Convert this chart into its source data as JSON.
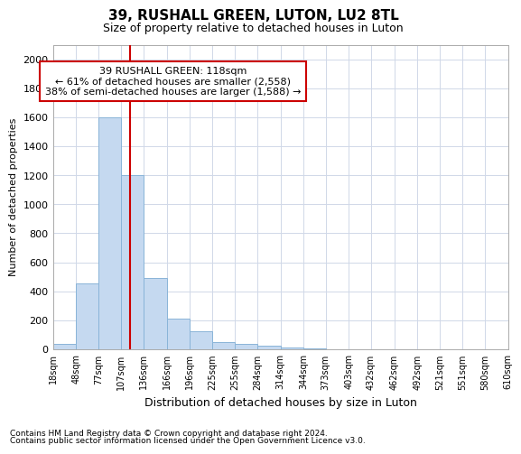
{
  "title": "39, RUSHALL GREEN, LUTON, LU2 8TL",
  "subtitle": "Size of property relative to detached houses in Luton",
  "xlabel": "Distribution of detached houses by size in Luton",
  "ylabel": "Number of detached properties",
  "footnote1": "Contains HM Land Registry data © Crown copyright and database right 2024.",
  "footnote2": "Contains public sector information licensed under the Open Government Licence v3.0.",
  "annotation_line1": "39 RUSHALL GREEN: 118sqm",
  "annotation_line2": "← 61% of detached houses are smaller (2,558)",
  "annotation_line3": "38% of semi-detached houses are larger (1,588) →",
  "bar_color": "#c5d9f0",
  "bar_edge_color": "#8ab4d8",
  "vline_color": "#cc0000",
  "vline_x": 118,
  "bin_edges": [
    18,
    48,
    77,
    107,
    136,
    166,
    196,
    225,
    255,
    284,
    314,
    344,
    373,
    403,
    432,
    462,
    492,
    521,
    551,
    580,
    610
  ],
  "bar_heights": [
    35,
    455,
    1600,
    1200,
    490,
    210,
    125,
    50,
    40,
    25,
    15,
    5,
    3,
    0,
    0,
    0,
    0,
    0,
    0,
    0
  ],
  "ylim": [
    0,
    2100
  ],
  "yticks": [
    0,
    200,
    400,
    600,
    800,
    1000,
    1200,
    1400,
    1600,
    1800,
    2000
  ],
  "background_color": "#ffffff",
  "grid_color": "#d0d8e8",
  "annotation_box_color": "#ffffff",
  "annotation_box_edge": "#cc0000"
}
